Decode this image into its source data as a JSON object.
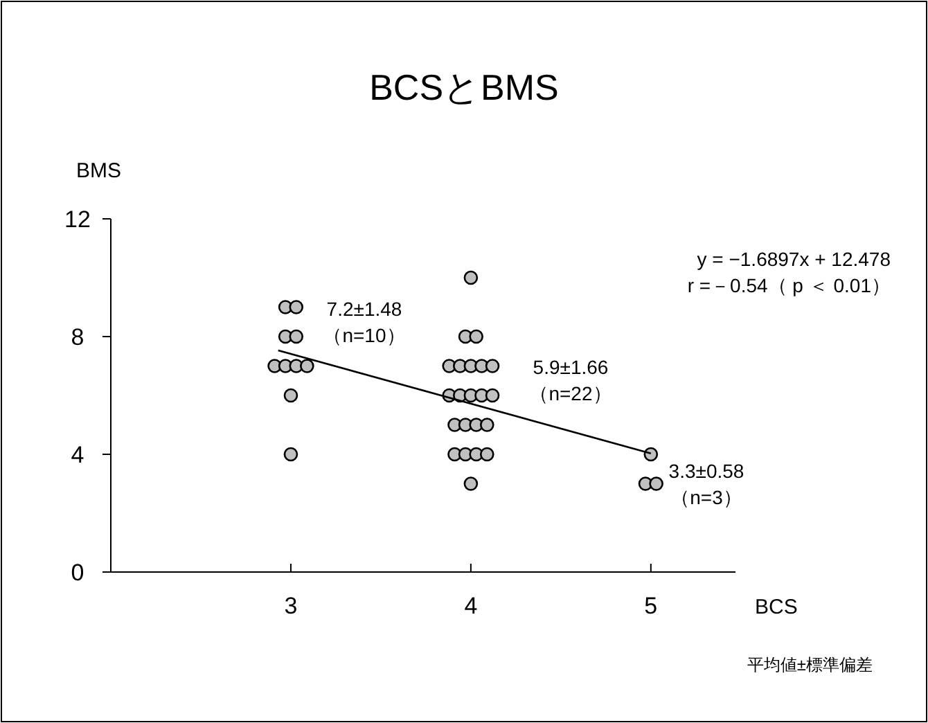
{
  "chart_data": {
    "type": "scatter",
    "title": "BCSとBMS",
    "xlabel": "BCS",
    "ylabel": "BMS",
    "xlim": [
      2,
      5.47
    ],
    "xticks": [
      3,
      4,
      5
    ],
    "ylim": [
      0,
      12
    ],
    "yticks": [
      0,
      4,
      8,
      12
    ],
    "grid": false,
    "series": [
      {
        "marker": "circle",
        "color": "#c0c0c0",
        "x": [
          2.97,
          3.03,
          2.97,
          3.03,
          2.91,
          2.97,
          3.03,
          3.09,
          3,
          3,
          4,
          3.97,
          4.03,
          3.88,
          3.94,
          4,
          4.06,
          4.12,
          3.88,
          3.94,
          4,
          4.06,
          4.12,
          3.91,
          3.97,
          4.03,
          4.09,
          3.91,
          3.97,
          4.03,
          4.09,
          4,
          5,
          4.97,
          5.03
        ],
        "values": [
          9,
          9,
          8,
          8,
          7,
          7,
          7,
          7,
          6,
          4,
          10,
          8,
          8,
          7,
          7,
          7,
          7,
          7,
          6,
          6,
          6,
          6,
          6,
          5,
          5,
          5,
          5,
          4,
          4,
          4,
          4,
          3,
          4,
          3,
          3
        ]
      },
      {
        "type": "line",
        "color": "#000000",
        "x": [
          2.93,
          5
        ],
        "values": [
          7.53,
          4.03
        ]
      }
    ],
    "annotations": [
      "7.2±1.48\n（n=10）",
      "5.9±1.66\n（n=22）",
      "3.3±0.58\n（n=3）",
      "y = −1.6897x + 12.478\nr =－0.54（ p ＜ 0.01）",
      "平均値±標準偏差"
    ]
  }
}
